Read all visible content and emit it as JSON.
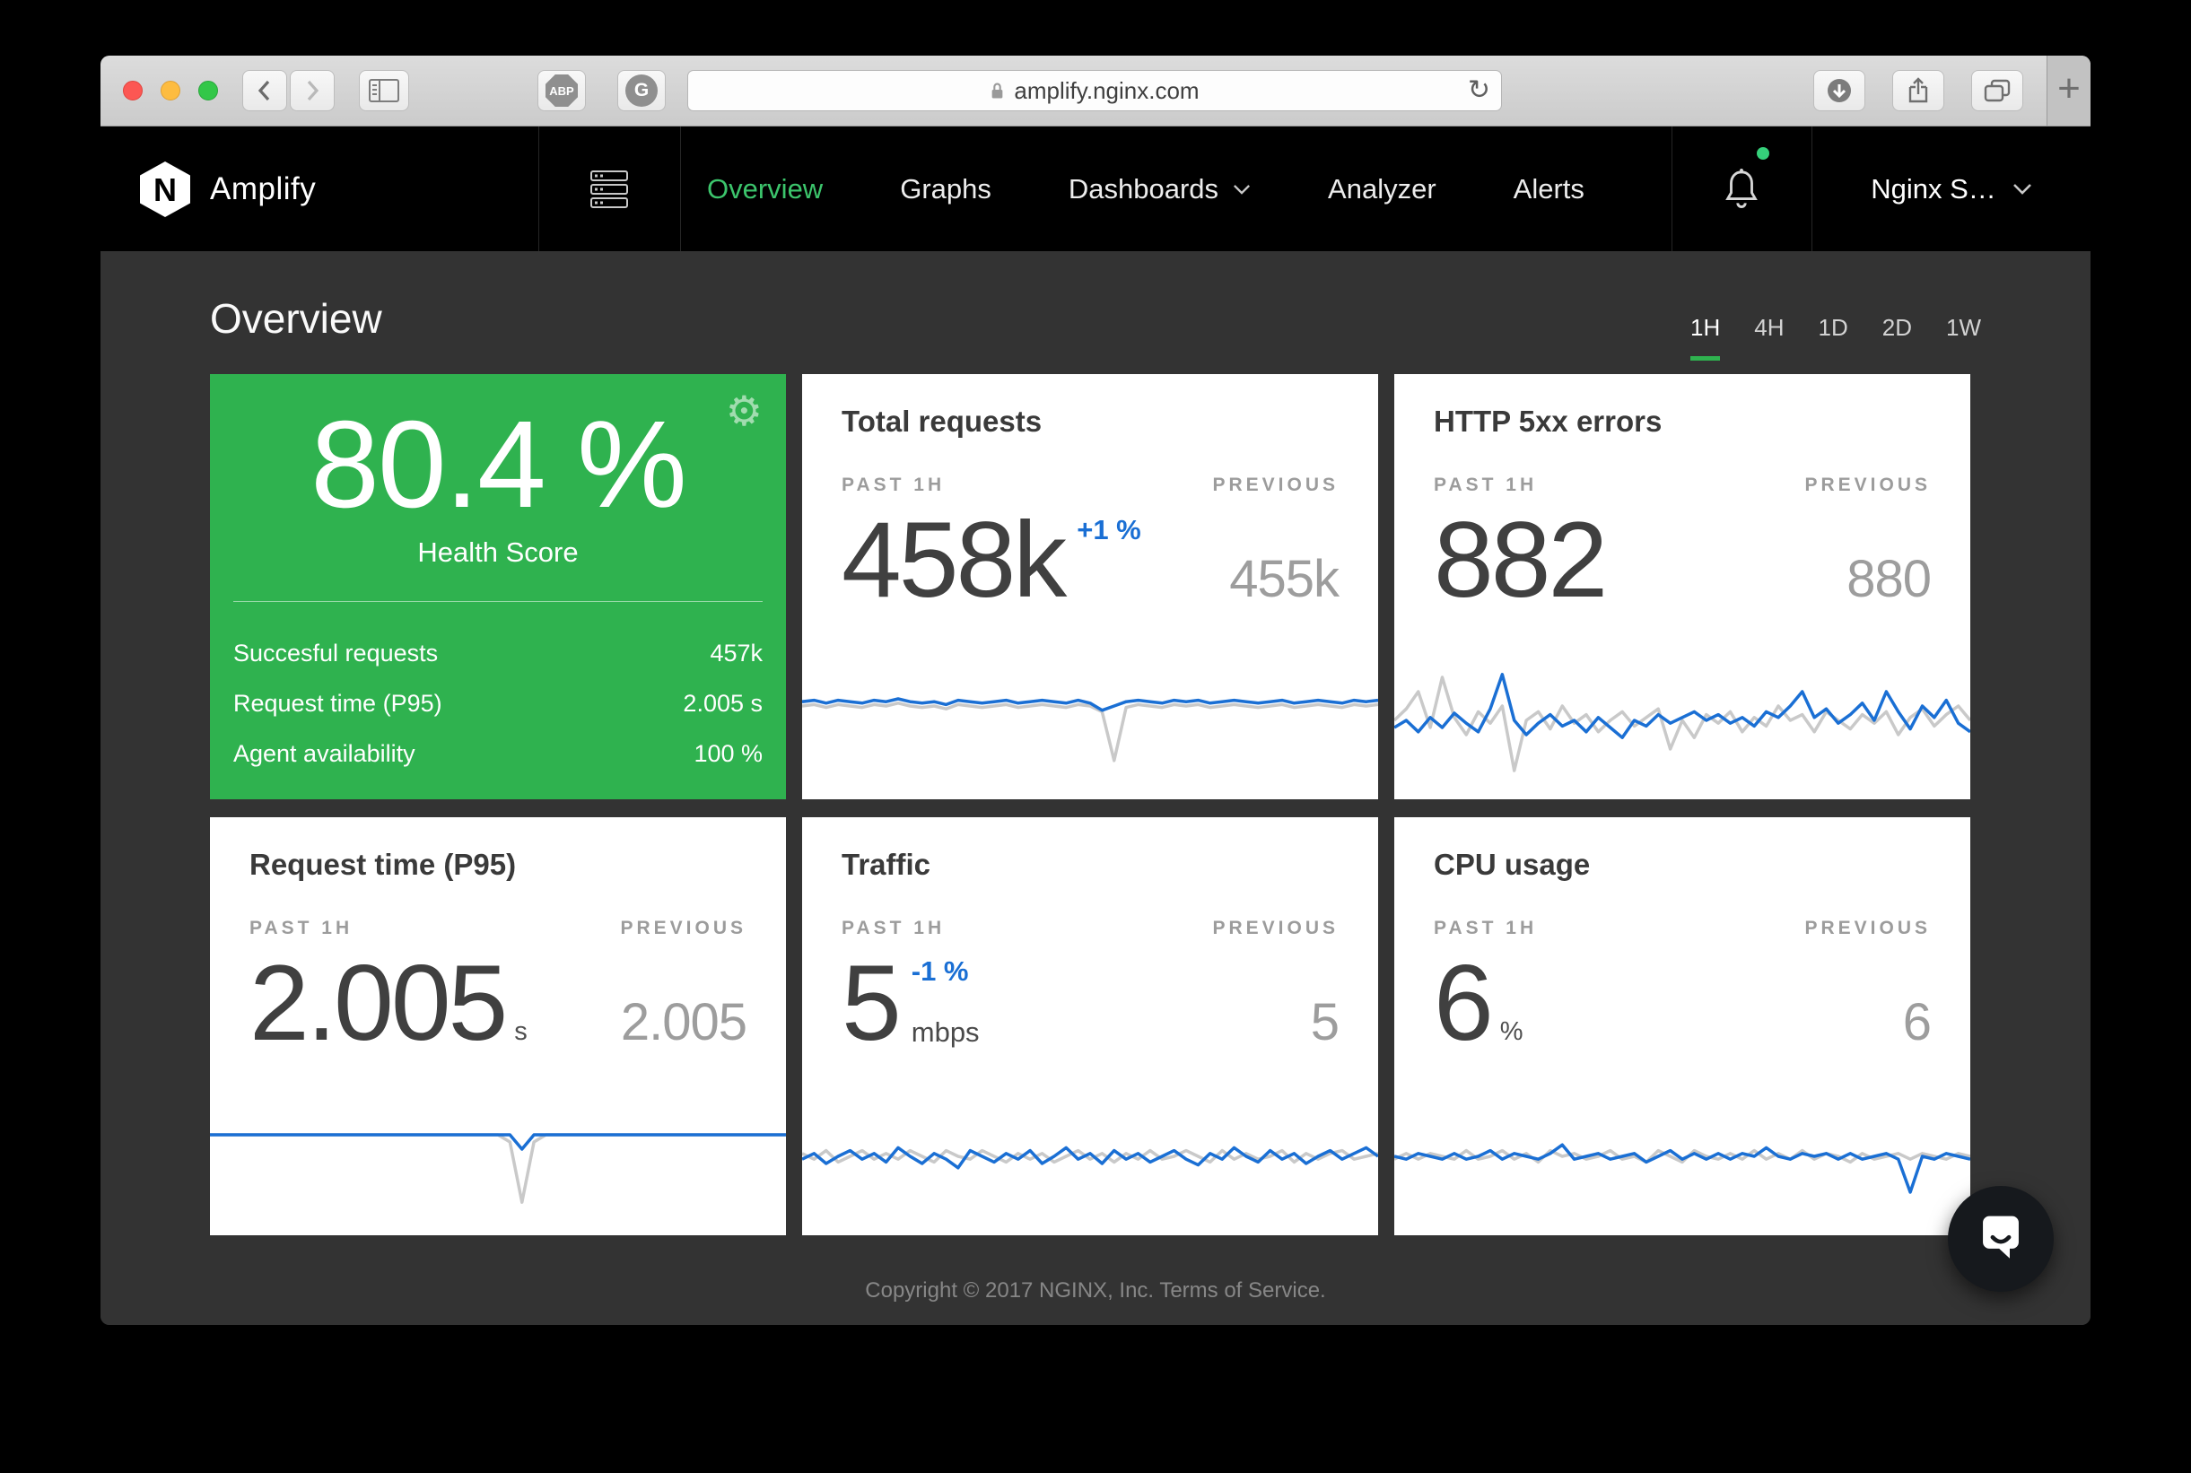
{
  "colors": {
    "accent_green": "#2fb24f",
    "nav_green": "#3cc56c",
    "blue": "#1a6fd4",
    "spark_gray": "#c9c9c9"
  },
  "browser": {
    "url": "amplify.nginx.com",
    "abp_label": "ABP",
    "ghostery_label": "G",
    "reload_glyph": "↻",
    "new_tab_glyph": "+"
  },
  "nav": {
    "brand": "Amplify",
    "logo_letter": "N",
    "items": [
      {
        "label": "Overview",
        "active": true,
        "dropdown": false
      },
      {
        "label": "Graphs",
        "active": false,
        "dropdown": false
      },
      {
        "label": "Dashboards",
        "active": false,
        "dropdown": true
      },
      {
        "label": "Analyzer",
        "active": false,
        "dropdown": false
      },
      {
        "label": "Alerts",
        "active": false,
        "dropdown": false
      }
    ],
    "notifications_unread": true,
    "account_label": "Nginx S…"
  },
  "page": {
    "title": "Overview",
    "time_ranges": [
      "1H",
      "4H",
      "1D",
      "2D",
      "1W"
    ],
    "selected_range": "1H",
    "footer_copyright": "Copyright © 2017 NGINX, Inc. ",
    "footer_terms": "Terms of Service."
  },
  "labels": {
    "past": "PAST 1H",
    "previous": "PREVIOUS"
  },
  "health_card": {
    "score": "80.4 %",
    "label": "Health Score",
    "rows": [
      {
        "label": "Succesful requests",
        "value": "457k"
      },
      {
        "label": "Request time (P95)",
        "value": "2.005 s"
      },
      {
        "label": "Agent availability",
        "value": "100 %"
      }
    ]
  },
  "cards": {
    "total_requests": {
      "title": "Total requests",
      "value": "458k",
      "change": "+1 %",
      "previous": "455k",
      "sparkline": {
        "current": [
          0.37,
          0.36,
          0.38,
          0.36,
          0.37,
          0.38,
          0.36,
          0.37,
          0.35,
          0.37,
          0.38,
          0.37,
          0.39,
          0.36,
          0.37,
          0.38,
          0.37,
          0.36,
          0.38,
          0.37,
          0.36,
          0.37,
          0.38,
          0.36,
          0.38,
          0.43,
          0.4,
          0.37,
          0.36,
          0.37,
          0.38,
          0.36,
          0.37,
          0.36,
          0.38,
          0.37,
          0.36,
          0.37,
          0.38,
          0.37,
          0.36,
          0.38,
          0.37,
          0.36,
          0.37,
          0.38,
          0.36,
          0.37,
          0.36
        ],
        "previous": [
          0.4,
          0.39,
          0.41,
          0.39,
          0.4,
          0.41,
          0.39,
          0.4,
          0.38,
          0.4,
          0.41,
          0.4,
          0.42,
          0.39,
          0.4,
          0.41,
          0.4,
          0.39,
          0.41,
          0.4,
          0.39,
          0.4,
          0.41,
          0.39,
          0.4,
          0.44,
          0.78,
          0.41,
          0.39,
          0.4,
          0.41,
          0.39,
          0.4,
          0.39,
          0.41,
          0.4,
          0.39,
          0.4,
          0.41,
          0.4,
          0.39,
          0.41,
          0.4,
          0.39,
          0.4,
          0.41,
          0.39,
          0.4,
          0.39
        ]
      }
    },
    "http_5xx": {
      "title": "HTTP 5xx errors",
      "value": "882",
      "previous": "880",
      "sparkline": {
        "current": [
          0.55,
          0.5,
          0.58,
          0.48,
          0.55,
          0.45,
          0.52,
          0.58,
          0.42,
          0.18,
          0.5,
          0.6,
          0.52,
          0.46,
          0.54,
          0.5,
          0.58,
          0.48,
          0.55,
          0.62,
          0.5,
          0.54,
          0.46,
          0.52,
          0.48,
          0.44,
          0.5,
          0.46,
          0.52,
          0.48,
          0.54,
          0.44,
          0.48,
          0.4,
          0.3,
          0.48,
          0.42,
          0.52,
          0.46,
          0.38,
          0.5,
          0.3,
          0.44,
          0.56,
          0.4,
          0.48,
          0.36,
          0.52,
          0.58
        ],
        "previous": [
          0.5,
          0.42,
          0.3,
          0.55,
          0.2,
          0.48,
          0.6,
          0.44,
          0.52,
          0.4,
          0.85,
          0.5,
          0.44,
          0.56,
          0.4,
          0.52,
          0.46,
          0.58,
          0.5,
          0.44,
          0.54,
          0.48,
          0.42,
          0.7,
          0.5,
          0.62,
          0.46,
          0.52,
          0.44,
          0.58,
          0.48,
          0.54,
          0.4,
          0.5,
          0.46,
          0.58,
          0.44,
          0.5,
          0.56,
          0.46,
          0.52,
          0.44,
          0.6,
          0.48,
          0.42,
          0.54,
          0.46,
          0.4,
          0.5
        ]
      }
    },
    "request_time": {
      "title": "Request time (P95)",
      "value": "2.005",
      "unit": "s",
      "previous": "2.005",
      "sparkline": {
        "current": [
          0.35,
          0.35,
          0.35,
          0.35,
          0.35,
          0.35,
          0.35,
          0.35,
          0.35,
          0.35,
          0.35,
          0.35,
          0.35,
          0.35,
          0.35,
          0.35,
          0.35,
          0.35,
          0.35,
          0.35,
          0.35,
          0.35,
          0.35,
          0.35,
          0.35,
          0.35,
          0.45,
          0.35,
          0.35,
          0.35,
          0.35,
          0.35,
          0.35,
          0.35,
          0.35,
          0.35,
          0.35,
          0.35,
          0.35,
          0.35,
          0.35,
          0.35,
          0.35,
          0.35,
          0.35,
          0.35,
          0.35,
          0.35,
          0.35
        ],
        "previous": [
          0.35,
          0.35,
          0.35,
          0.35,
          0.35,
          0.35,
          0.35,
          0.35,
          0.35,
          0.35,
          0.35,
          0.35,
          0.35,
          0.35,
          0.35,
          0.35,
          0.35,
          0.35,
          0.35,
          0.35,
          0.35,
          0.35,
          0.35,
          0.35,
          0.35,
          0.4,
          0.82,
          0.4,
          0.35,
          0.35,
          0.35,
          0.35,
          0.35,
          0.35,
          0.35,
          0.35,
          0.35,
          0.35,
          0.35,
          0.35,
          0.35,
          0.35,
          0.35,
          0.35,
          0.35,
          0.35,
          0.35,
          0.35,
          0.35
        ]
      }
    },
    "traffic": {
      "title": "Traffic",
      "value": "5",
      "unit": "mbps",
      "change": "-1 %",
      "previous": "5",
      "sparkline": {
        "current": [
          0.52,
          0.48,
          0.55,
          0.5,
          0.46,
          0.52,
          0.48,
          0.54,
          0.44,
          0.5,
          0.55,
          0.48,
          0.52,
          0.58,
          0.46,
          0.5,
          0.54,
          0.48,
          0.52,
          0.46,
          0.55,
          0.5,
          0.44,
          0.52,
          0.48,
          0.55,
          0.46,
          0.52,
          0.48,
          0.54,
          0.5,
          0.46,
          0.52,
          0.56,
          0.48,
          0.52,
          0.44,
          0.5,
          0.54,
          0.46,
          0.52,
          0.48,
          0.55,
          0.5,
          0.46,
          0.52,
          0.48,
          0.44,
          0.5
        ],
        "previous": [
          0.48,
          0.52,
          0.46,
          0.54,
          0.5,
          0.46,
          0.52,
          0.48,
          0.52,
          0.46,
          0.5,
          0.54,
          0.46,
          0.5,
          0.52,
          0.46,
          0.5,
          0.54,
          0.48,
          0.52,
          0.48,
          0.54,
          0.5,
          0.46,
          0.52,
          0.48,
          0.54,
          0.48,
          0.52,
          0.46,
          0.52,
          0.5,
          0.46,
          0.5,
          0.54,
          0.46,
          0.52,
          0.48,
          0.52,
          0.5,
          0.46,
          0.54,
          0.48,
          0.52,
          0.48,
          0.46,
          0.52,
          0.5,
          0.48
        ]
      }
    },
    "cpu": {
      "title": "CPU usage",
      "value": "6",
      "unit": "%",
      "previous": "6",
      "sparkline": {
        "current": [
          0.5,
          0.52,
          0.48,
          0.5,
          0.52,
          0.48,
          0.52,
          0.5,
          0.46,
          0.52,
          0.48,
          0.5,
          0.52,
          0.48,
          0.42,
          0.52,
          0.5,
          0.48,
          0.52,
          0.5,
          0.48,
          0.54,
          0.5,
          0.46,
          0.52,
          0.48,
          0.52,
          0.48,
          0.52,
          0.48,
          0.5,
          0.44,
          0.5,
          0.52,
          0.48,
          0.5,
          0.48,
          0.52,
          0.48,
          0.52,
          0.5,
          0.48,
          0.52,
          0.75,
          0.5,
          0.52,
          0.48,
          0.5,
          0.52
        ],
        "previous": [
          0.52,
          0.48,
          0.52,
          0.48,
          0.5,
          0.52,
          0.46,
          0.52,
          0.5,
          0.46,
          0.52,
          0.48,
          0.54,
          0.46,
          0.5,
          0.48,
          0.52,
          0.5,
          0.46,
          0.52,
          0.5,
          0.54,
          0.46,
          0.5,
          0.54,
          0.46,
          0.5,
          0.52,
          0.48,
          0.52,
          0.46,
          0.52,
          0.48,
          0.52,
          0.46,
          0.52,
          0.48,
          0.5,
          0.54,
          0.48,
          0.52,
          0.5,
          0.48,
          0.52,
          0.48,
          0.5,
          0.52,
          0.48,
          0.5
        ]
      }
    }
  }
}
